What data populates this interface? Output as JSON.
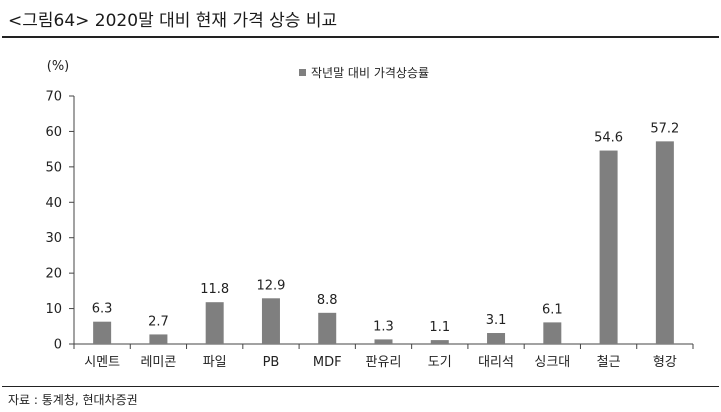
{
  "figure": {
    "title": "<그림64> 2020말 대비 현재 가격 상승 비교",
    "source": "자료 : 통계청, 현대차증권"
  },
  "colors": {
    "bar": "#7f7f7f",
    "axis": "#444444",
    "text": "#222222"
  },
  "chart_data": {
    "type": "bar",
    "categories": [
      "시멘트",
      "레미콘",
      "파일",
      "PB",
      "MDF",
      "판유리",
      "도기",
      "대리석",
      "싱크대",
      "철근",
      "형강"
    ],
    "series": [
      {
        "name": "작년말 대비 가격상승률",
        "values": [
          6.3,
          2.7,
          11.8,
          12.9,
          8.8,
          1.3,
          1.1,
          3.1,
          6.1,
          54.6,
          57.2
        ]
      }
    ],
    "value_labels": [
      "6.3",
      "2.7",
      "11.8",
      "12.9",
      "8.8",
      "1.3",
      "1.1",
      "3.1",
      "6.1",
      "54.6",
      "57.2"
    ],
    "ylabel": "(%)",
    "ylim": [
      0,
      70
    ],
    "yticks": [
      0,
      10,
      20,
      30,
      40,
      50,
      60,
      70
    ],
    "grid": false,
    "legend": "top-center"
  }
}
